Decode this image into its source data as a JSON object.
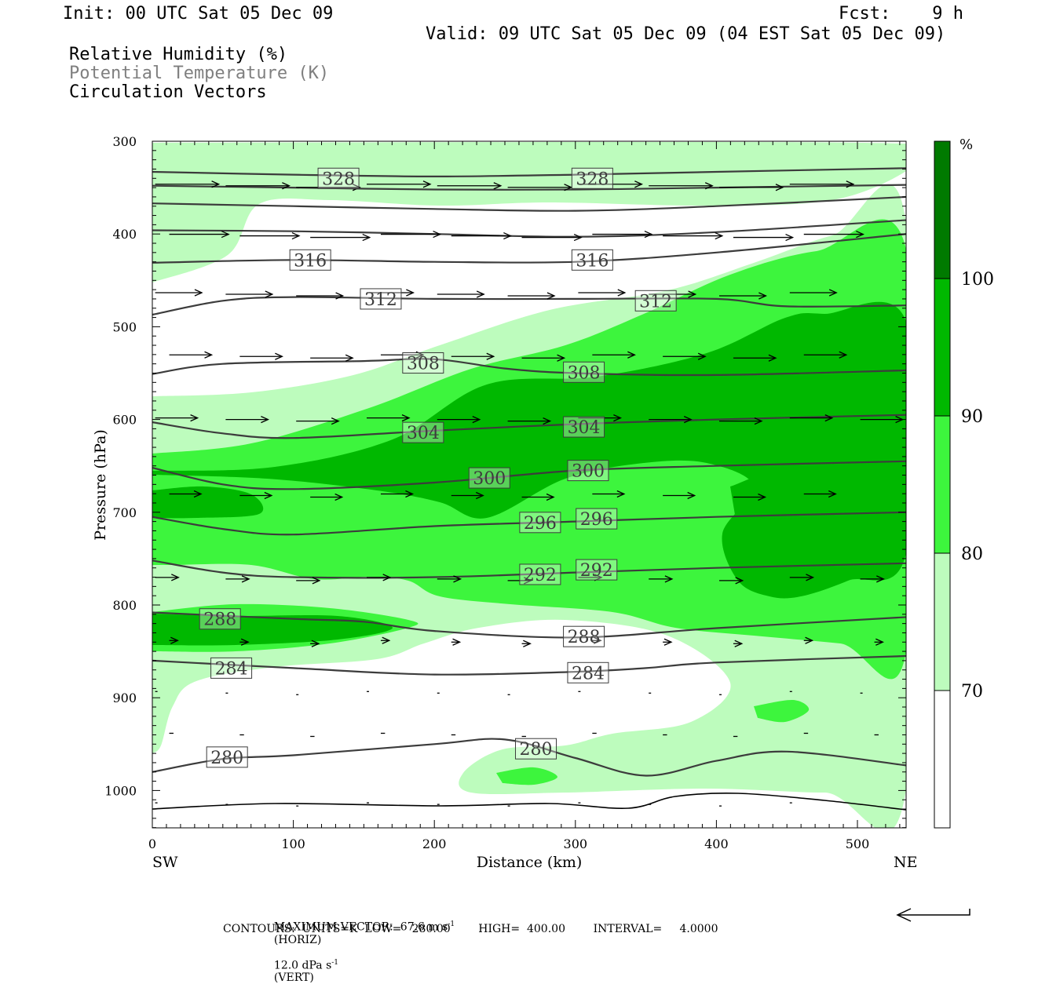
{
  "header": {
    "init": "Init: 00 UTC Sat 05 Dec 09",
    "fcst": "Fcst:    9 h",
    "valid": "Valid: 09 UTC Sat 05 Dec 09 (04 EST Sat 05 Dec 09)",
    "field1": "Relative Humidity (%)",
    "field2": "Potential Temperature (K)",
    "field3": "Circulation Vectors"
  },
  "colors": {
    "rh_70_80": "#bdfcbd",
    "rh_80_90": "#3df53d",
    "rh_90_100": "#00b800",
    "rh_100": "#007a00",
    "theta_line": "#3c3c3c",
    "vector": "#000000"
  },
  "chart_data": {
    "type": "cross-section",
    "xlabel": "Distance (km)",
    "ylabel": "Pressure (hPa)",
    "xlim": [
      0,
      535
    ],
    "ylim": [
      1040,
      300
    ],
    "x_ticks": [
      0,
      100,
      200,
      300,
      400,
      500
    ],
    "x_tick_labels": [
      "0",
      "100",
      "200",
      "300",
      "400",
      "500"
    ],
    "y_ticks": [
      300,
      400,
      500,
      600,
      700,
      800,
      900,
      1000
    ],
    "y_tick_labels": [
      "300",
      "400",
      "500",
      "600",
      "700",
      "800",
      "900",
      "1000"
    ],
    "x_end_labels": {
      "left": "SW",
      "right": "NE"
    },
    "colorbar": {
      "unit": "%",
      "levels": [
        70,
        80,
        90,
        100
      ],
      "level_labels": [
        "70",
        "80",
        "90",
        "100"
      ]
    },
    "theta_contours": [
      {
        "value": 328,
        "label": "328",
        "points": [
          [
            0,
            333
          ],
          [
            100,
            336
          ],
          [
            200,
            338
          ],
          [
            300,
            336
          ],
          [
            400,
            333
          ],
          [
            535,
            329
          ]
        ]
      },
      {
        "value": 324,
        "label": "",
        "points": [
          [
            0,
            348
          ],
          [
            100,
            350
          ],
          [
            200,
            352
          ],
          [
            300,
            352
          ],
          [
            400,
            350
          ],
          [
            535,
            347
          ]
        ]
      },
      {
        "value": 320,
        "label": "",
        "points": [
          [
            0,
            367
          ],
          [
            100,
            370
          ],
          [
            200,
            373
          ],
          [
            300,
            375
          ],
          [
            400,
            370
          ],
          [
            535,
            360
          ]
        ]
      },
      {
        "value": 318,
        "label": "",
        "points": [
          [
            0,
            396
          ],
          [
            100,
            397
          ],
          [
            200,
            400
          ],
          [
            300,
            403
          ],
          [
            400,
            398
          ],
          [
            535,
            385
          ]
        ]
      },
      {
        "value": 316,
        "label": "316",
        "points": [
          [
            0,
            431
          ],
          [
            100,
            428
          ],
          [
            200,
            430
          ],
          [
            300,
            430
          ],
          [
            400,
            420
          ],
          [
            535,
            400
          ]
        ]
      },
      {
        "value": 312,
        "label": "312",
        "points": [
          [
            0,
            487
          ],
          [
            50,
            472
          ],
          [
            100,
            468
          ],
          [
            200,
            470
          ],
          [
            300,
            470
          ],
          [
            400,
            470
          ],
          [
            450,
            478
          ],
          [
            535,
            477
          ]
        ]
      },
      {
        "value": 308,
        "label": "308",
        "points": [
          [
            0,
            551
          ],
          [
            50,
            540
          ],
          [
            150,
            537
          ],
          [
            200,
            535
          ],
          [
            250,
            545
          ],
          [
            300,
            550
          ],
          [
            400,
            552
          ],
          [
            535,
            547
          ]
        ]
      },
      {
        "value": 304,
        "label": "304",
        "points": [
          [
            0,
            603
          ],
          [
            50,
            615
          ],
          [
            100,
            620
          ],
          [
            200,
            612
          ],
          [
            300,
            605
          ],
          [
            400,
            600
          ],
          [
            535,
            595
          ]
        ]
      },
      {
        "value": 300,
        "label": "300",
        "points": [
          [
            0,
            652
          ],
          [
            50,
            670
          ],
          [
            100,
            675
          ],
          [
            200,
            668
          ],
          [
            300,
            655
          ],
          [
            400,
            650
          ],
          [
            535,
            645
          ]
        ]
      },
      {
        "value": 296,
        "label": "296",
        "points": [
          [
            0,
            705
          ],
          [
            50,
            718
          ],
          [
            100,
            724
          ],
          [
            200,
            715
          ],
          [
            300,
            710
          ],
          [
            400,
            705
          ],
          [
            535,
            700
          ]
        ]
      },
      {
        "value": 292,
        "label": "292",
        "points": [
          [
            0,
            752
          ],
          [
            50,
            765
          ],
          [
            100,
            770
          ],
          [
            200,
            770
          ],
          [
            300,
            765
          ],
          [
            400,
            760
          ],
          [
            535,
            755
          ]
        ]
      },
      {
        "value": 288,
        "label": "288",
        "points": [
          [
            0,
            808
          ],
          [
            100,
            815
          ],
          [
            150,
            818
          ],
          [
            200,
            828
          ],
          [
            300,
            835
          ],
          [
            400,
            825
          ],
          [
            535,
            813
          ]
        ]
      },
      {
        "value": 284,
        "label": "284",
        "points": [
          [
            0,
            860
          ],
          [
            100,
            868
          ],
          [
            200,
            875
          ],
          [
            300,
            872
          ],
          [
            350,
            868
          ],
          [
            400,
            862
          ],
          [
            535,
            855
          ]
        ]
      },
      {
        "value": 280,
        "label": "280",
        "points": [
          [
            0,
            980
          ],
          [
            50,
            966
          ],
          [
            100,
            962
          ],
          [
            200,
            950
          ],
          [
            250,
            945
          ],
          [
            300,
            965
          ],
          [
            350,
            984
          ],
          [
            400,
            968
          ],
          [
            450,
            958
          ],
          [
            535,
            973
          ]
        ]
      }
    ],
    "theta_label_positions": [
      {
        "label": "328",
        "x": 132,
        "p": 340
      },
      {
        "label": "328",
        "x": 312,
        "p": 340
      },
      {
        "label": "316",
        "x": 112,
        "p": 428
      },
      {
        "label": "316",
        "x": 312,
        "p": 428
      },
      {
        "label": "312",
        "x": 162,
        "p": 470
      },
      {
        "label": "312",
        "x": 357,
        "p": 472
      },
      {
        "label": "308",
        "x": 192,
        "p": 539
      },
      {
        "label": "308",
        "x": 306,
        "p": 549
      },
      {
        "label": "304",
        "x": 192,
        "p": 614
      },
      {
        "label": "304",
        "x": 306,
        "p": 608
      },
      {
        "label": "300",
        "x": 239,
        "p": 663
      },
      {
        "label": "300",
        "x": 309,
        "p": 655
      },
      {
        "label": "296",
        "x": 275,
        "p": 711
      },
      {
        "label": "296",
        "x": 315,
        "p": 707
      },
      {
        "label": "292",
        "x": 275,
        "p": 767
      },
      {
        "label": "292",
        "x": 315,
        "p": 762
      },
      {
        "label": "288",
        "x": 48,
        "p": 815
      },
      {
        "label": "288",
        "x": 306,
        "p": 834
      },
      {
        "label": "284",
        "x": 56,
        "p": 868
      },
      {
        "label": "284",
        "x": 309,
        "p": 873
      },
      {
        "label": "280",
        "x": 53,
        "p": 964
      },
      {
        "label": "280",
        "x": 272,
        "p": 955
      }
    ],
    "vector_rows": [
      {
        "p": 348,
        "u": 30
      },
      {
        "p": 402,
        "u": 28
      },
      {
        "p": 465,
        "u": 22
      },
      {
        "p": 532,
        "u": 20
      },
      {
        "p": 600,
        "u": 20
      },
      {
        "p": 682,
        "u": 15
      },
      {
        "p": 772,
        "u": 11
      },
      {
        "p": 840,
        "u": 4
      },
      {
        "p": 895,
        "u": 1
      },
      {
        "p": 940,
        "u": 2
      },
      {
        "p": 1015,
        "u": 1
      }
    ],
    "footer": {
      "max_vector": "MAXIMUM VECTOR:  67.6 m s",
      "max_vector_horiz": "(HORIZ)",
      "max_vector_vert": "12.0 dPa s",
      "max_vector_vert_tail": "(VERT)",
      "sup": "-1",
      "contours": "CONTOURS:  UNITS=K  LOW=   280.00        HIGH=  400.00        INTERVAL=     4.0000"
    }
  }
}
